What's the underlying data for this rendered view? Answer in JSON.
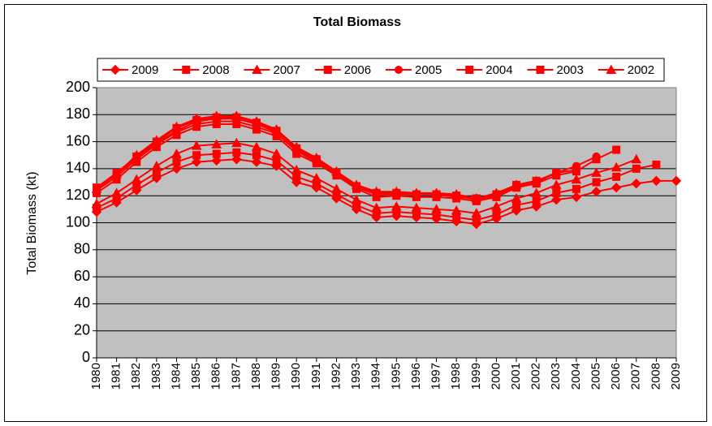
{
  "chart_data": {
    "type": "line",
    "title": "Total Biomass",
    "y_label": "Total Biomass (kt)",
    "categories": [
      "1980",
      "1981",
      "1982",
      "1983",
      "1984",
      "1985",
      "1986",
      "1987",
      "1988",
      "1989",
      "1990",
      "1991",
      "1992",
      "1993",
      "1994",
      "1995",
      "1996",
      "1997",
      "1998",
      "1999",
      "2000",
      "2001",
      "2002",
      "2003",
      "2004",
      "2005",
      "2006",
      "2007",
      "2008",
      "2009"
    ],
    "ylim": [
      0,
      200
    ],
    "yticks": [
      0,
      20,
      40,
      60,
      80,
      100,
      120,
      140,
      160,
      180,
      200
    ],
    "grid": true,
    "legend": "top",
    "series": [
      {
        "name": "2009",
        "color": "#ff0000",
        "marker": "diamond",
        "values": [
          108,
          115,
          124,
          133,
          140,
          145,
          146,
          147,
          145,
          142,
          130,
          126,
          118,
          110,
          104,
          105,
          104,
          103,
          101,
          99,
          103,
          109,
          112,
          117,
          119,
          123,
          126,
          129,
          131,
          131
        ]
      },
      {
        "name": "2008",
        "color": "#ff0000",
        "marker": "square",
        "values": [
          111,
          118,
          128,
          137,
          145,
          150,
          151,
          152,
          150,
          146,
          134,
          129,
          121,
          113,
          107,
          108,
          107,
          106,
          104,
          102,
          106,
          113,
          116,
          122,
          125,
          130,
          134,
          140,
          143,
          null
        ]
      },
      {
        "name": "2007",
        "color": "#ff0000",
        "marker": "triangle",
        "values": [
          114,
          122,
          132,
          142,
          151,
          157,
          158,
          159,
          156,
          151,
          139,
          133,
          125,
          117,
          111,
          112,
          111,
          110,
          109,
          107,
          112,
          118,
          122,
          128,
          132,
          137,
          141,
          147,
          null,
          null
        ]
      },
      {
        "name": "2006",
        "color": "#ff0000",
        "marker": "square",
        "values": [
          122,
          132,
          145,
          156,
          165,
          171,
          173,
          173,
          169,
          164,
          151,
          144,
          135,
          125,
          119,
          120,
          119,
          119,
          118,
          116,
          119,
          126,
          129,
          135,
          138,
          147,
          154,
          null,
          null,
          null
        ]
      },
      {
        "name": "2005",
        "color": "#ff0000",
        "marker": "circle",
        "values": [
          124,
          134,
          147,
          158,
          167,
          173,
          175,
          175,
          171,
          166,
          153,
          145,
          136,
          126,
          121,
          121,
          121,
          121,
          119,
          118,
          121,
          127,
          130,
          137,
          142,
          149,
          null,
          null,
          null,
          null
        ]
      },
      {
        "name": "2004",
        "color": "#ff0000",
        "marker": "square",
        "values": [
          125,
          136,
          148,
          159,
          168,
          175,
          177,
          177,
          173,
          167,
          154,
          146,
          137,
          127,
          122,
          122,
          121,
          121,
          120,
          118,
          121,
          128,
          131,
          137,
          139,
          null,
          null,
          null,
          null,
          null
        ]
      },
      {
        "name": "2003",
        "color": "#ff0000",
        "marker": "square",
        "values": [
          126,
          137,
          149,
          160,
          170,
          176,
          178,
          178,
          174,
          168,
          155,
          147,
          137,
          127,
          122,
          122,
          121,
          121,
          120,
          117,
          120,
          126,
          130,
          137,
          null,
          null,
          null,
          null,
          null,
          null
        ]
      },
      {
        "name": "2002",
        "color": "#ff0000",
        "marker": "triangle",
        "values": [
          125,
          136,
          150,
          161,
          171,
          177,
          179,
          179,
          175,
          169,
          156,
          148,
          138,
          128,
          123,
          123,
          122,
          122,
          121,
          118,
          122,
          128,
          131,
          null,
          null,
          null,
          null,
          null,
          null,
          null
        ]
      }
    ]
  }
}
